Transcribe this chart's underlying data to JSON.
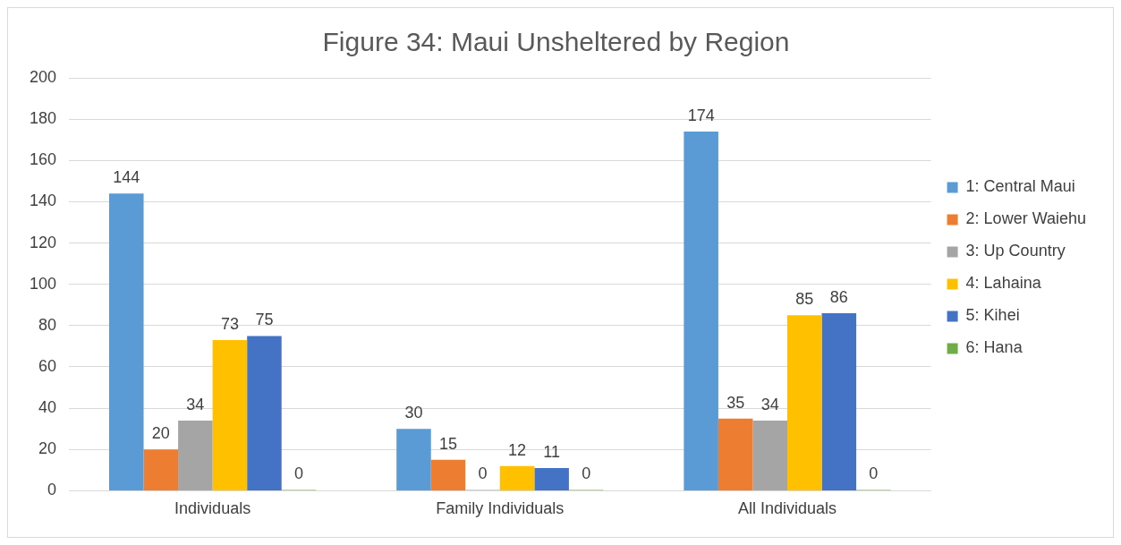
{
  "chart_data": {
    "type": "bar",
    "title": "Figure 34: Maui Unsheltered by Region",
    "categories": [
      "Individuals",
      "Family Individuals",
      "All Individuals"
    ],
    "series": [
      {
        "name": "1: Central Maui",
        "color": "#5b9bd5",
        "values": [
          144,
          30,
          174
        ]
      },
      {
        "name": "2: Lower Waiehu",
        "color": "#ed7d31",
        "values": [
          20,
          15,
          35
        ]
      },
      {
        "name": "3: Up Country",
        "color": "#a5a5a5",
        "values": [
          34,
          0,
          34
        ]
      },
      {
        "name": "4: Lahaina",
        "color": "#ffc000",
        "values": [
          73,
          12,
          85
        ]
      },
      {
        "name": "5: Kihei",
        "color": "#4472c4",
        "values": [
          75,
          11,
          86
        ]
      },
      {
        "name": "6: Hana",
        "color": "#70ad47",
        "values": [
          0,
          0,
          0
        ]
      }
    ],
    "ylim": [
      0,
      200
    ],
    "yticks": [
      0,
      20,
      40,
      60,
      80,
      100,
      120,
      140,
      160,
      180,
      200
    ],
    "grid": "y",
    "legend": "right",
    "data_labels": true
  }
}
